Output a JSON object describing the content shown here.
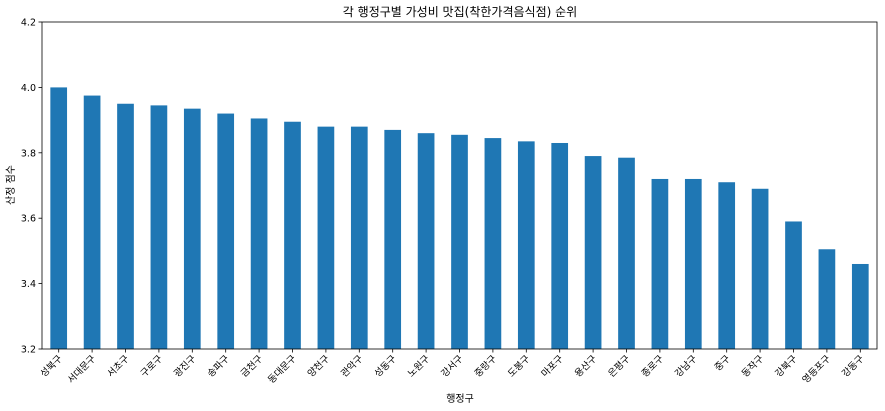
{
  "chart_data": {
    "type": "bar",
    "title": "각 행정구별 가성비 맛집(착한가격음식점) 순위",
    "xlabel": "행정구",
    "ylabel": "산정 점수",
    "ylim": [
      3.2,
      4.2
    ],
    "yticks": [
      "3.2",
      "3.4",
      "3.6",
      "3.8",
      "4.0",
      "4.2"
    ],
    "grid": false,
    "bar_color": "#1f77b4",
    "categories": [
      "성북구",
      "서대문구",
      "서초구",
      "구로구",
      "광진구",
      "송파구",
      "금천구",
      "동대문구",
      "양천구",
      "관악구",
      "성동구",
      "노원구",
      "강서구",
      "중랑구",
      "도봉구",
      "마포구",
      "용산구",
      "은평구",
      "종로구",
      "강남구",
      "중구",
      "동작구",
      "강북구",
      "영등포구",
      "강동구"
    ],
    "values": [
      4.0,
      3.975,
      3.95,
      3.945,
      3.935,
      3.92,
      3.905,
      3.895,
      3.88,
      3.88,
      3.87,
      3.86,
      3.855,
      3.845,
      3.835,
      3.83,
      3.79,
      3.785,
      3.72,
      3.72,
      3.71,
      3.69,
      3.59,
      3.505,
      3.46
    ]
  }
}
